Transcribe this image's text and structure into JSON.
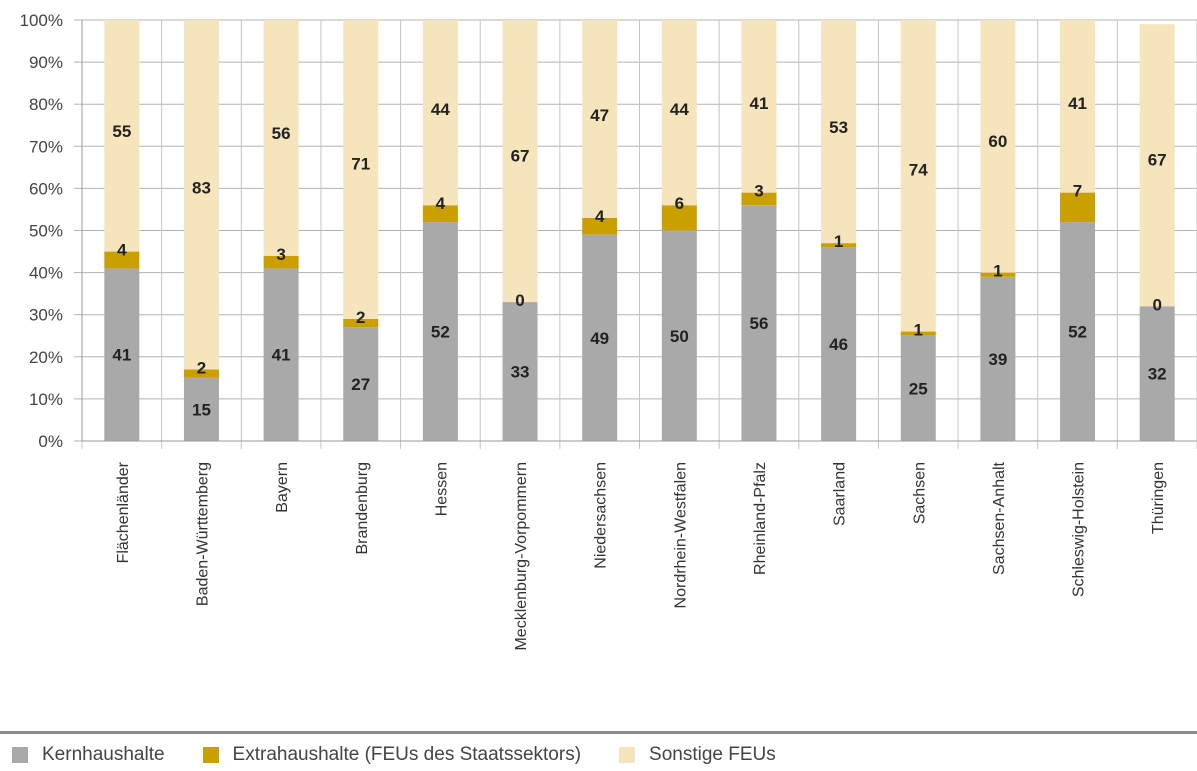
{
  "chart_data": {
    "type": "bar",
    "stacked": true,
    "categories": [
      "Flächenländer",
      "Baden-Württemberg",
      "Bayern",
      "Brandenburg",
      "Hessen",
      "Mecklenburg-Vorpommern",
      "Niedersachsen",
      "Nordrhein-Westfalen",
      "Rheinland-Pfalz",
      "Saarland",
      "Sachsen",
      "Sachsen-Anhalt",
      "Schleswig-Holstein",
      "Thüringen"
    ],
    "series": [
      {
        "name": "Kernhaushalte",
        "color": "#a9a9a9",
        "values": [
          41,
          15,
          41,
          27,
          52,
          33,
          49,
          50,
          56,
          46,
          25,
          39,
          52,
          32
        ]
      },
      {
        "name": "Extrahaushalte (FEUs des Staatssektors)",
        "color": "#c9a000",
        "values": [
          4,
          2,
          3,
          2,
          4,
          0,
          4,
          6,
          3,
          1,
          1,
          1,
          7,
          0
        ]
      },
      {
        "name": "Sonstige FEUs",
        "color": "#f5e4bc",
        "values": [
          55,
          83,
          56,
          71,
          44,
          67,
          47,
          44,
          41,
          53,
          74,
          60,
          41,
          67
        ]
      }
    ],
    "yticks": [
      "0%",
      "10%",
      "20%",
      "30%",
      "40%",
      "50%",
      "60%",
      "70%",
      "80%",
      "90%",
      "100%"
    ],
    "ylim": [
      0,
      100
    ],
    "grid": true,
    "legend_position": "bottom"
  }
}
